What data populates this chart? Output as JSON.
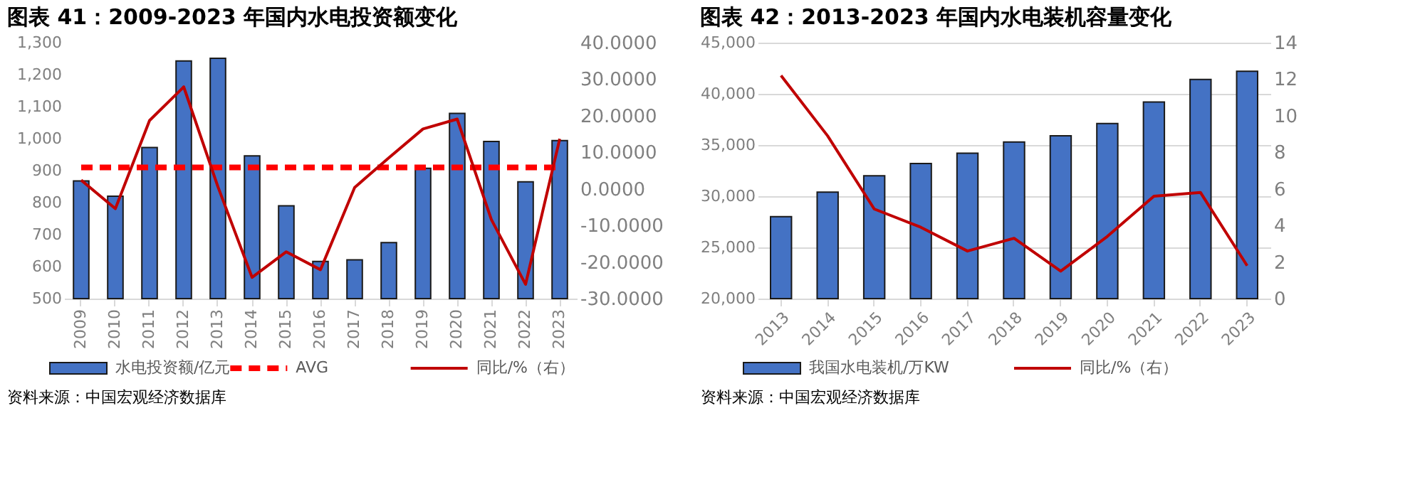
{
  "chart_data": [
    {
      "type": "bar",
      "title": "图表 41：2009-2023 年国内水电投资额变化",
      "categories": [
        "2009",
        "2010",
        "2011",
        "2012",
        "2013",
        "2014",
        "2015",
        "2016",
        "2017",
        "2018",
        "2019",
        "2020",
        "2021",
        "2022",
        "2023"
      ],
      "series": [
        {
          "name": "水电投资额/亿元",
          "color": "#4472c4",
          "values": [
            868,
            820,
            972,
            1243,
            1251,
            946,
            790,
            616,
            621,
            675,
            907,
            1079,
            991,
            865,
            994
          ]
        },
        {
          "name": "AVG",
          "type": "line",
          "line_style": "dashed",
          "color": "#ff0000",
          "values": [
            910,
            910,
            910,
            910,
            910,
            910,
            910,
            910,
            910,
            910,
            910,
            910,
            910,
            910,
            910
          ]
        },
        {
          "name": "同比/%（右）",
          "type": "line",
          "axis": "y2",
          "color": "#c00000",
          "values": [
            2.4,
            -5.4,
            18.7,
            27.9,
            0.6,
            -24.2,
            -17.2,
            -22.1,
            0.4,
            8.5,
            16.4,
            19.1,
            -8.4,
            -26.1,
            13.7
          ]
        }
      ],
      "ylim": [
        500,
        1300
      ],
      "yticks": [
        500,
        600,
        700,
        800,
        900,
        {
          "value": 1000,
          "label": "1,000"
        },
        {
          "value": 1100,
          "label": "1,100"
        },
        {
          "value": 1200,
          "label": "1,200"
        },
        {
          "value": 1300,
          "label": "1,300"
        }
      ],
      "y2lim": [
        -30,
        40
      ],
      "y2ticks": [
        {
          "value": -30,
          "label": "-30.0000"
        },
        {
          "value": -20,
          "label": "-20.0000"
        },
        {
          "value": -10,
          "label": "-10.0000"
        },
        {
          "value": 0,
          "label": "0.0000"
        },
        {
          "value": 10,
          "label": "10.0000"
        },
        {
          "value": 20,
          "label": "20.0000"
        },
        {
          "value": 30,
          "label": "30.0000"
        },
        {
          "value": 40,
          "label": "40.0000"
        }
      ],
      "grid": false,
      "legend": "bottom",
      "marker": "none",
      "annotations": [
        "资料来源：中国宏观经济数据库"
      ]
    },
    {
      "type": "bar",
      "title": "图表 42：2013-2023 年国内水电装机容量变化",
      "categories": [
        "2013",
        "2014",
        "2015",
        "2016",
        "2017",
        "2018",
        "2019",
        "2020",
        "2021",
        "2022",
        "2023"
      ],
      "series": [
        {
          "name": "我国水电装机/万KW",
          "color": "#4472c4",
          "values": [
            28000,
            30400,
            32000,
            33200,
            34200,
            35300,
            35900,
            37100,
            39200,
            41400,
            42200
          ]
        },
        {
          "name": "同比/%（右）",
          "type": "line",
          "axis": "y2",
          "color": "#c00000",
          "values": [
            12.2,
            8.9,
            4.9,
            3.9,
            2.6,
            3.3,
            1.5,
            3.4,
            5.6,
            5.8,
            1.8
          ]
        }
      ],
      "ylim": [
        20000,
        45000
      ],
      "yticks": [
        {
          "value": 20000,
          "label": "20,000"
        },
        {
          "value": 25000,
          "label": "25,000"
        },
        {
          "value": 30000,
          "label": "30,000"
        },
        {
          "value": 35000,
          "label": "35,000"
        },
        {
          "value": 40000,
          "label": "40,000"
        },
        {
          "value": 45000,
          "label": "45,000"
        }
      ],
      "y2lim": [
        0,
        14
      ],
      "y2ticks": [
        0,
        2,
        4,
        6,
        8,
        10,
        12,
        14
      ],
      "grid": "y",
      "legend": "bottom",
      "marker": "none",
      "annotations": [
        "资料来源：中国宏观经济数据库"
      ]
    }
  ]
}
